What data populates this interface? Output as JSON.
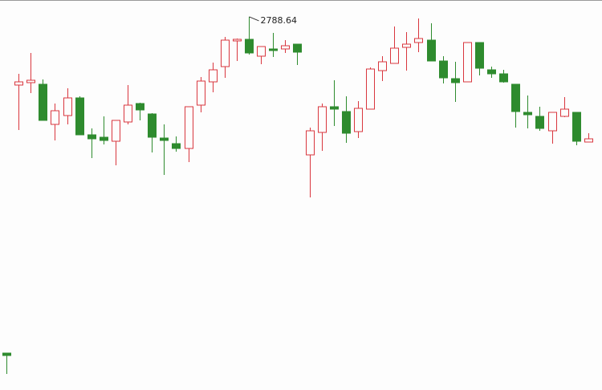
{
  "chart_data": {
    "type": "candlestick",
    "up_color": "#d9363e",
    "down_color": "#2e8b2e",
    "ylim": [
      2556.1,
      2799.1
    ],
    "open": [
      2579.1,
      2746.1,
      2747.6,
      2746.6,
      2721.6,
      2727.1,
      2738.1,
      2715.1,
      2713.6,
      2711.1,
      2723.1,
      2734.6,
      2728.1,
      2713.1,
      2709.6,
      2706.6,
      2733.6,
      2748.1,
      2757.6,
      2773.6,
      2774.6,
      2764.1,
      2768.6,
      2768.6,
      2771.6,
      2702.6,
      2716.6,
      2732.6,
      2729.6,
      2717.1,
      2731.1,
      2755.1,
      2759.6,
      2769.6,
      2772.6,
      2774.1,
      2761.1,
      2750.1,
      2748.1,
      2772.6,
      2755.6,
      2753.1,
      2746.6,
      2729.1,
      2726.6,
      2717.6,
      2726.6,
      2729.1,
      2710.6
    ],
    "high": [
      2579.1,
      2753.1,
      2766.1,
      2749.6,
      2734.6,
      2744.1,
      2739.1,
      2719.1,
      2726.6,
      2724.1,
      2746.1,
      2735.1,
      2728.6,
      2721.6,
      2714.1,
      2732.6,
      2751.1,
      2760.1,
      2776.1,
      2775.1,
      2788.64,
      2770.1,
      2778.6,
      2774.1,
      2771.6,
      2719.6,
      2734.6,
      2749.1,
      2739.1,
      2736.1,
      2757.1,
      2764.1,
      2782.6,
      2779.1,
      2787.6,
      2784.6,
      2764.1,
      2760.6,
      2772.6,
      2772.6,
      2757.6,
      2755.6,
      2746.6,
      2739.6,
      2732.6,
      2729.1,
      2738.6,
      2729.1,
      2716.1
    ],
    "low": [
      2566.1,
      2718.1,
      2741.1,
      2724.1,
      2711.6,
      2721.6,
      2715.1,
      2700.6,
      2709.1,
      2696.1,
      2721.6,
      2724.1,
      2704.1,
      2690.1,
      2704.6,
      2698.1,
      2729.1,
      2741.6,
      2750.6,
      2761.1,
      2765.1,
      2759.1,
      2763.6,
      2766.1,
      2758.6,
      2676.1,
      2705.1,
      2720.6,
      2710.1,
      2713.1,
      2731.1,
      2748.6,
      2759.6,
      2755.1,
      2766.6,
      2761.1,
      2747.1,
      2735.6,
      2748.1,
      2752.1,
      2750.6,
      2747.6,
      2719.6,
      2719.1,
      2717.6,
      2709.6,
      2726.1,
      2708.6,
      2710.6
    ],
    "close": [
      2577.6,
      2748.1,
      2749.1,
      2724.1,
      2730.1,
      2738.1,
      2715.1,
      2712.6,
      2711.6,
      2724.1,
      2733.6,
      2730.6,
      2713.6,
      2711.6,
      2706.6,
      2732.6,
      2748.6,
      2755.6,
      2774.1,
      2774.6,
      2766.1,
      2770.1,
      2767.6,
      2770.6,
      2766.6,
      2717.6,
      2732.6,
      2731.1,
      2716.1,
      2731.6,
      2756.1,
      2760.6,
      2769.1,
      2771.6,
      2775.1,
      2761.1,
      2750.6,
      2747.6,
      2772.6,
      2756.6,
      2753.1,
      2748.1,
      2729.6,
      2727.6,
      2719.1,
      2729.1,
      2731.1,
      2711.1,
      2712.6
    ]
  }
}
